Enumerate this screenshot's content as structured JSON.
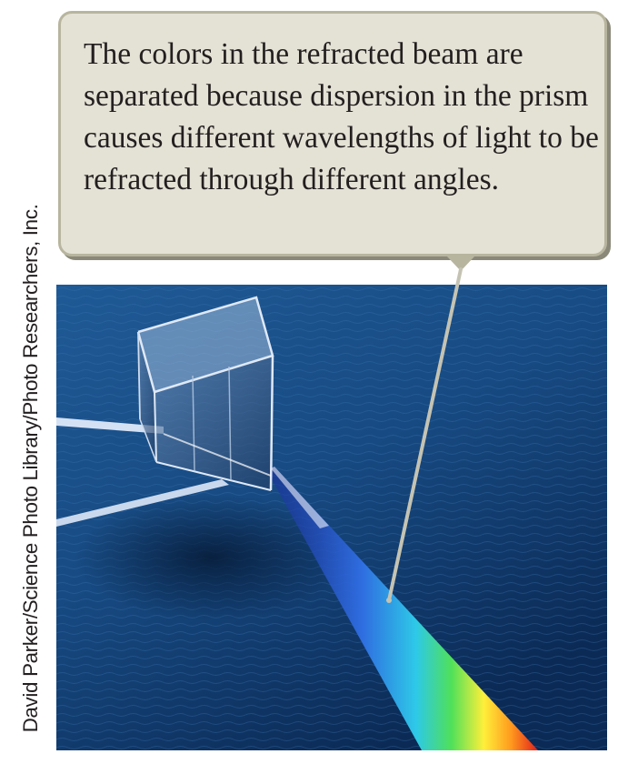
{
  "callout": {
    "text": "The colors in the refracted beam are separated because dispersion in the prism causes different wavelengths of light to be refracted through different angles."
  },
  "photo": {
    "subject": "prism",
    "credit": "David Parker/Science Photo Library/Photo Researchers, Inc."
  },
  "colors": {
    "callout_fill": "#e4e1d5",
    "callout_border": "#b8b59f",
    "water_deep": "#0b2a55",
    "water_light": "#1f5a96",
    "pointer_line": "#c4c3b3"
  }
}
